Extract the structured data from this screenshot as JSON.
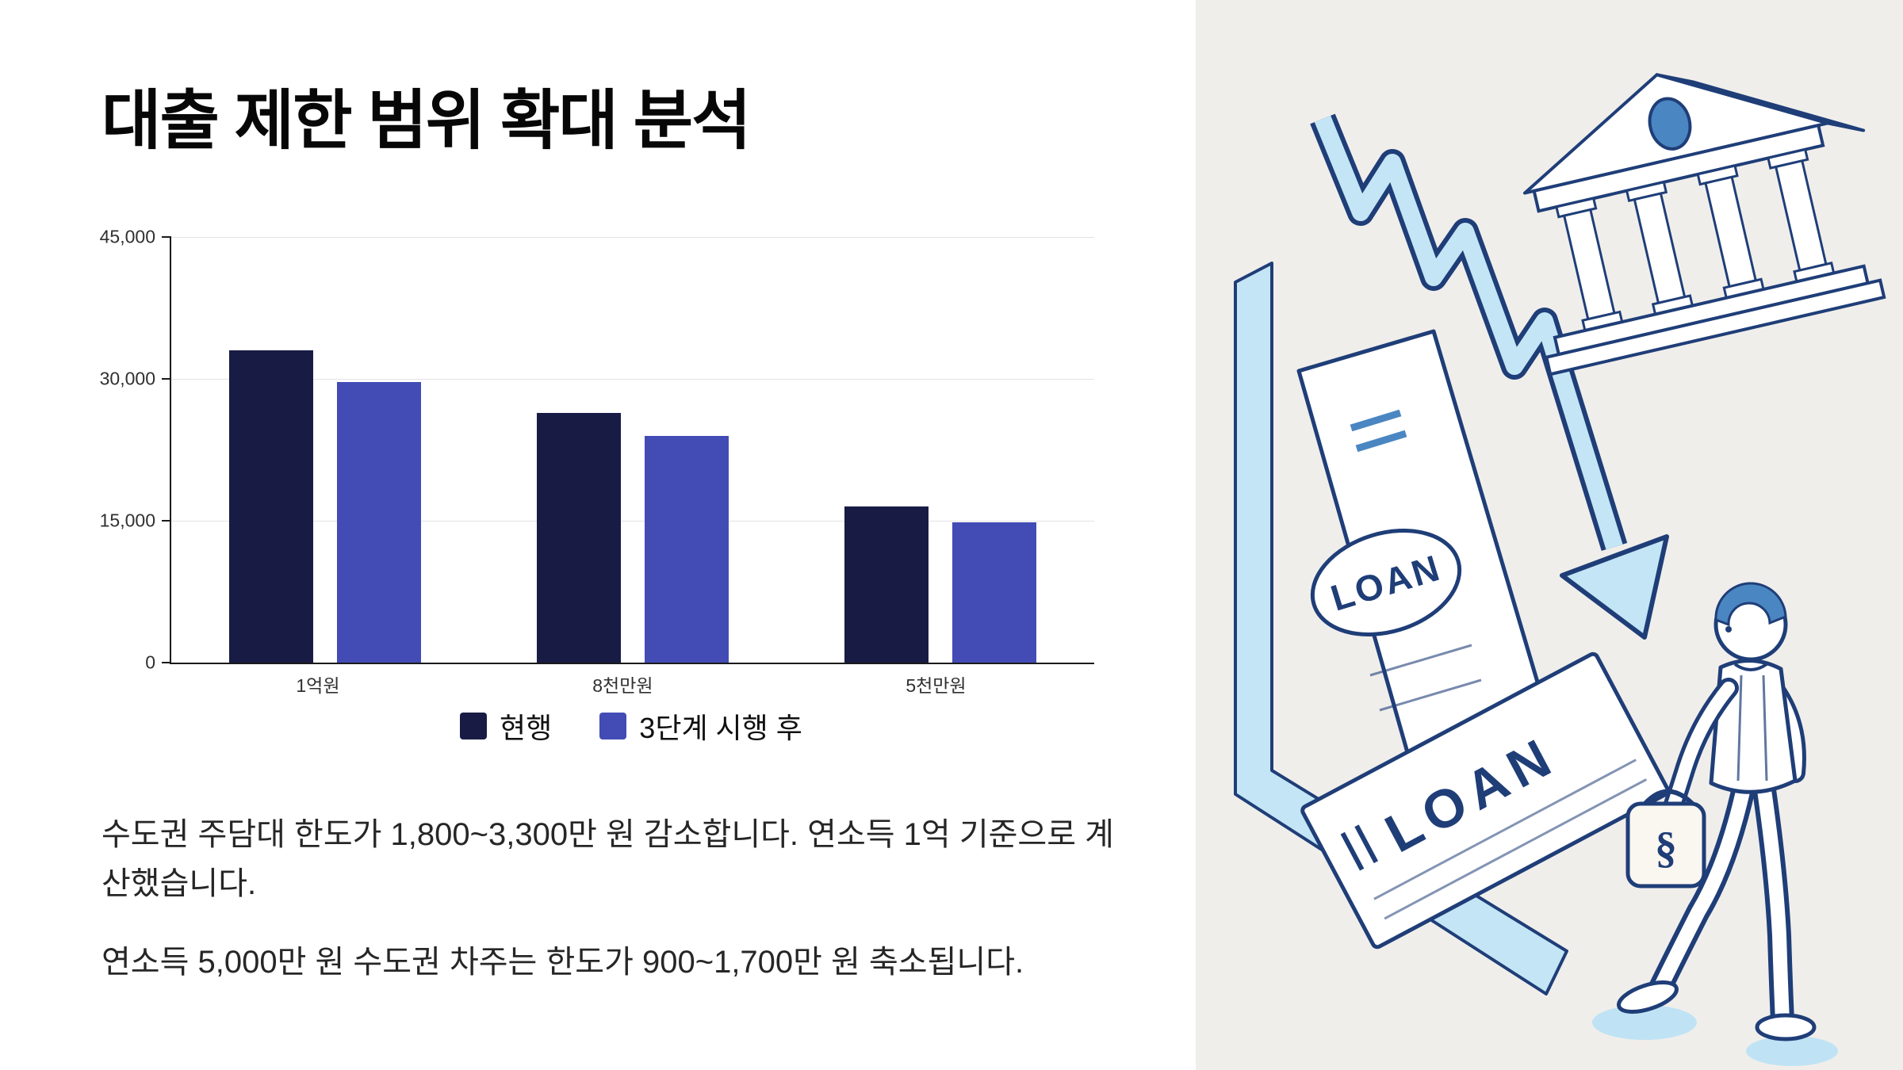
{
  "page": {
    "title": "대출 제한 범위 확대 분석"
  },
  "chart_data": {
    "type": "bar",
    "title": "",
    "xlabel": "",
    "ylabel": "",
    "categories": [
      "1억원",
      "8천만원",
      "5천만원"
    ],
    "series": [
      {
        "name": "현행",
        "color": "#181c45",
        "values": [
          33000,
          26400,
          16500
        ]
      },
      {
        "name": "3단계 시행 후",
        "color": "#434cb5",
        "values": [
          29700,
          24000,
          14800
        ]
      }
    ],
    "ylim": [
      0,
      45000
    ],
    "yticks": [
      0,
      15000,
      30000,
      45000
    ],
    "grid": true,
    "legend_position": "bottom"
  },
  "notes": {
    "paragraph1": "수도권 주담대 한도가 1,800~3,300만 원 감소합니다. 연소득 1억 기준으로 계산했습니다.",
    "paragraph2": "연소득 5,000만 원 수도권 차주는 한도가 900~1,700만 원 축소됩니다."
  },
  "illustration": {
    "stamp_label": "LOAN",
    "document_label": "LOAN",
    "bag_symbol": "§"
  },
  "colors": {
    "series_current": "#181c45",
    "series_after": "#434cb5",
    "right_panel_bg": "#f0eeeb",
    "outline_navy": "#1f3e78",
    "accent_light_blue": "#c4e5f5",
    "accent_mid_blue": "#4a86c2"
  }
}
